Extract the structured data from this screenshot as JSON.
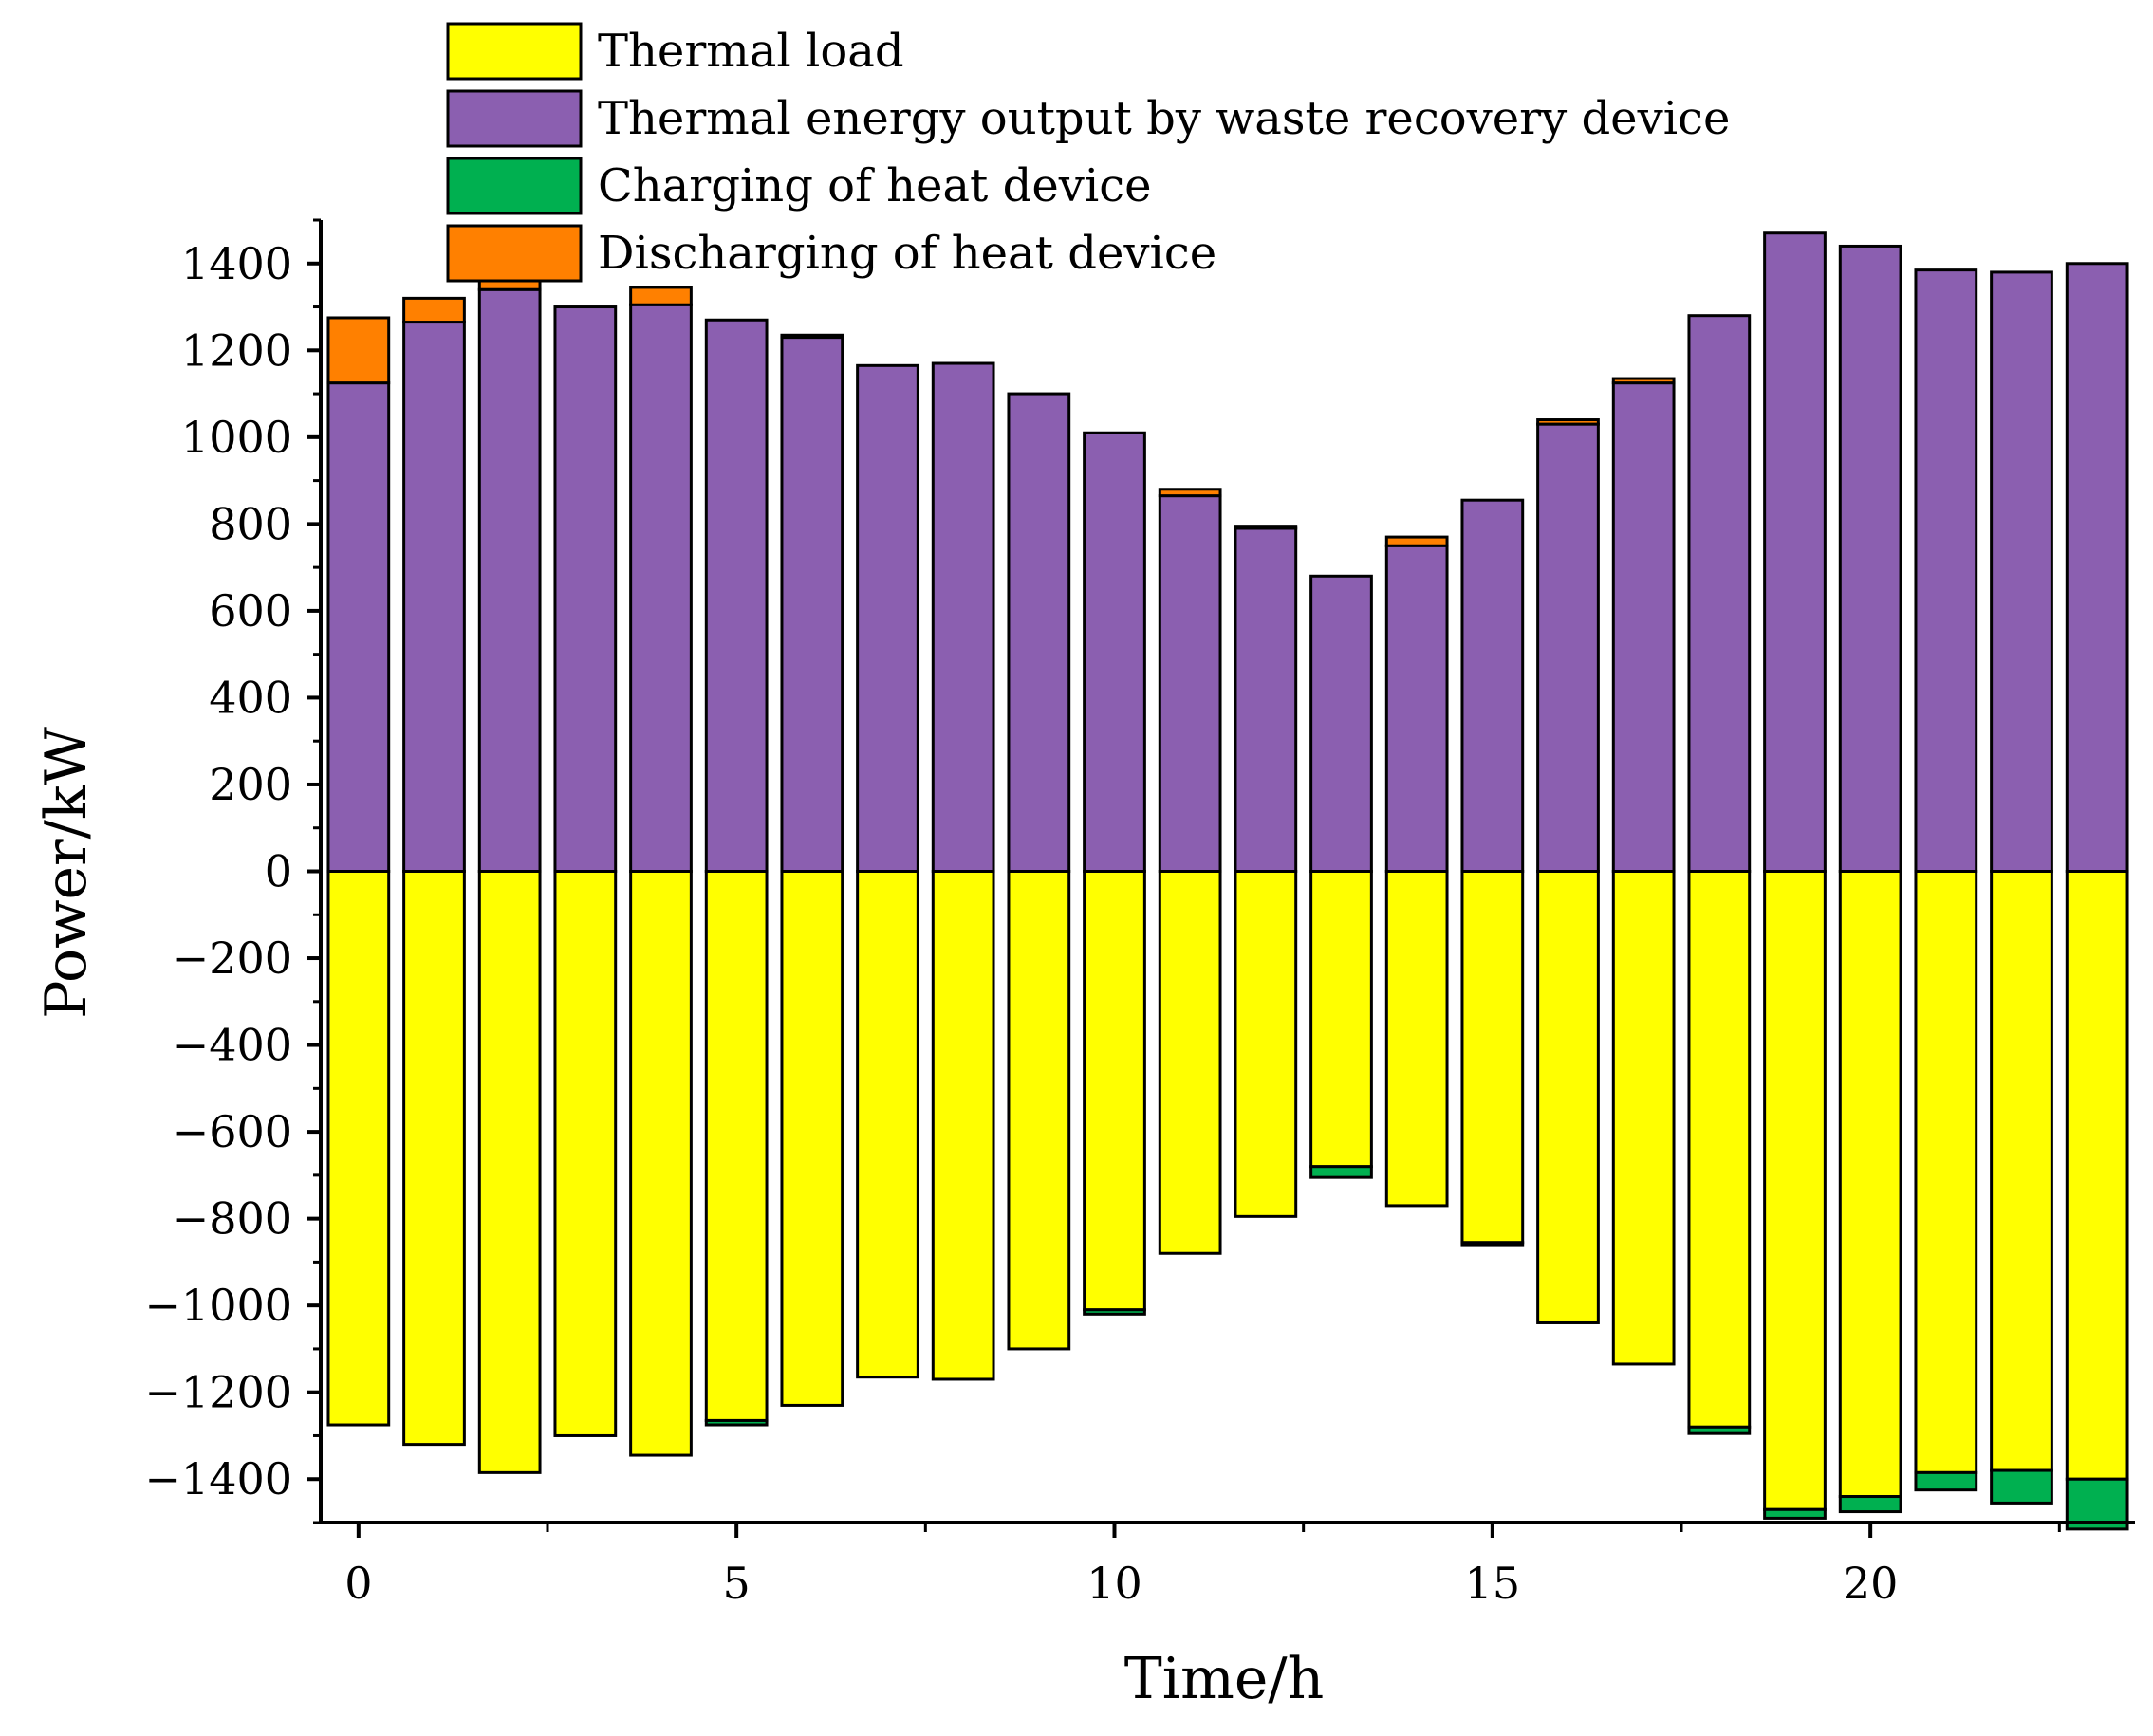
{
  "chart_data": {
    "type": "bar",
    "stacked": true,
    "xlabel": "Time/h",
    "ylabel": "Power/kW",
    "xlim": [
      -0.5,
      23.5
    ],
    "ylim": [
      -1500,
      1500
    ],
    "x_ticks": [
      0,
      5,
      10,
      15,
      20
    ],
    "y_ticks": [
      -1400,
      -1200,
      -1000,
      -800,
      -600,
      -400,
      -200,
      0,
      200,
      400,
      600,
      800,
      1000,
      1200,
      1400
    ],
    "x_tick_labels": [
      "0",
      "5",
      "10",
      "15",
      "20"
    ],
    "y_tick_labels": [
      "−1400",
      "−1200",
      "−1000",
      "−800",
      "−600",
      "−400",
      "−200",
      "0",
      "200",
      "400",
      "600",
      "800",
      "1000",
      "1200",
      "1400"
    ],
    "legend_position": "top-left",
    "grid": false,
    "x": [
      0,
      1,
      2,
      3,
      4,
      5,
      6,
      7,
      8,
      9,
      10,
      11,
      12,
      13,
      14,
      15,
      16,
      17,
      18,
      19,
      20,
      21,
      22,
      23
    ],
    "series": [
      {
        "name": "Thermal load",
        "color": "#ffff00",
        "values": [
          -1275,
          -1320,
          -1385,
          -1300,
          -1345,
          -1265,
          -1230,
          -1165,
          -1170,
          -1100,
          -1010,
          -880,
          -795,
          -680,
          -770,
          -855,
          -1040,
          -1135,
          -1280,
          -1470,
          -1440,
          -1385,
          -1380,
          -1400
        ]
      },
      {
        "name": "Thermal energy output by waste recovery device",
        "color": "#8b5fb0",
        "values": [
          1125,
          1265,
          1340,
          1300,
          1305,
          1270,
          1230,
          1165,
          1170,
          1100,
          1010,
          865,
          790,
          680,
          750,
          855,
          1030,
          1125,
          1280,
          1470,
          1440,
          1385,
          1380,
          1400
        ]
      },
      {
        "name": "Charging of heat device",
        "color": "#00b050",
        "values": [
          0,
          0,
          0,
          0,
          0,
          -10,
          0,
          0,
          0,
          0,
          -10,
          0,
          0,
          -25,
          0,
          -5,
          0,
          0,
          -15,
          -20,
          -35,
          -40,
          -75,
          -115
        ]
      },
      {
        "name": "Discharging of heat device",
        "color": "#ff8000",
        "values": [
          150,
          55,
          45,
          0,
          40,
          0,
          5,
          0,
          0,
          0,
          0,
          15,
          5,
          0,
          20,
          0,
          10,
          10,
          0,
          0,
          0,
          0,
          0,
          0
        ]
      }
    ]
  }
}
